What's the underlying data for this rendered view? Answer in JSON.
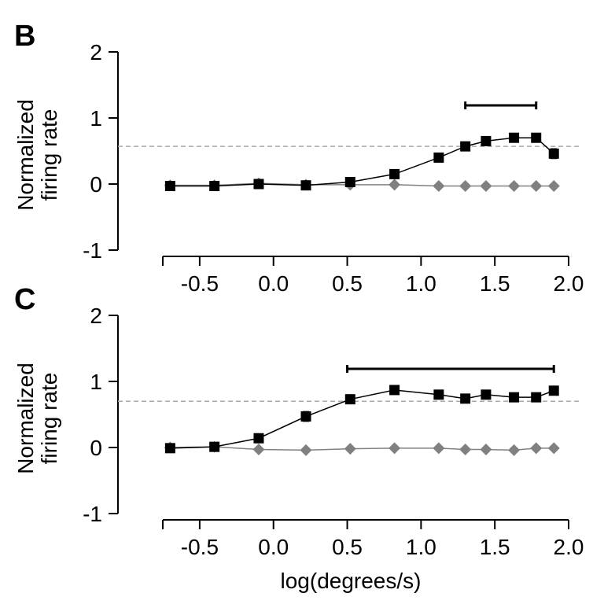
{
  "figure": {
    "xlabel": "log(degrees/s)"
  },
  "chart_data": [
    {
      "type": "line",
      "panel_label": "B",
      "ylabel_lines": [
        "Normalized",
        "firing rate"
      ],
      "xlim": [
        -0.75,
        2.0
      ],
      "ylim": [
        -1,
        2
      ],
      "xticks": [
        -0.5,
        0.0,
        0.5,
        1.0,
        1.5,
        2.0
      ],
      "xtick_labels": [
        "-0.5",
        "0.0",
        "0.5",
        "1.0",
        "1.5",
        "2.0"
      ],
      "yticks": [
        -1,
        0,
        1,
        2
      ],
      "ytick_labels": [
        "-1",
        "0",
        "1",
        "2"
      ],
      "grid": false,
      "reference_line_y": 0.57,
      "significance_bar": [
        1.3,
        1.78
      ],
      "x": [
        -0.7,
        -0.4,
        -0.1,
        0.22,
        0.52,
        0.82,
        1.12,
        1.3,
        1.44,
        1.63,
        1.78,
        1.9
      ],
      "series": [
        {
          "marker": "square",
          "color": "#000000",
          "values": [
            -0.03,
            -0.03,
            0.0,
            -0.02,
            0.03,
            0.15,
            0.4,
            0.57,
            0.65,
            0.7,
            0.7,
            0.46
          ],
          "errors": [
            0.02,
            0.02,
            0.02,
            0.02,
            0.03,
            0.06,
            0.04,
            0.06,
            0.04,
            0.05,
            0.06,
            0.07
          ]
        },
        {
          "marker": "diamond",
          "color": "#808080",
          "values": [
            -0.02,
            -0.02,
            0.01,
            -0.01,
            -0.01,
            -0.01,
            -0.03,
            -0.03,
            -0.03,
            -0.03,
            -0.03,
            -0.03
          ]
        }
      ]
    },
    {
      "type": "line",
      "panel_label": "C",
      "ylabel_lines": [
        "Normalized",
        "firing rate"
      ],
      "xlim": [
        -0.75,
        2.0
      ],
      "ylim": [
        -1,
        2
      ],
      "xticks": [
        -0.5,
        0.0,
        0.5,
        1.0,
        1.5,
        2.0
      ],
      "xtick_labels": [
        "-0.5",
        "0.0",
        "0.5",
        "1.0",
        "1.5",
        "2.0"
      ],
      "yticks": [
        -1,
        0,
        1,
        2
      ],
      "ytick_labels": [
        "-1",
        "0",
        "1",
        "2"
      ],
      "grid": false,
      "reference_line_y": 0.7,
      "significance_bar": [
        0.5,
        1.9
      ],
      "x": [
        -0.7,
        -0.4,
        -0.1,
        0.22,
        0.52,
        0.82,
        1.12,
        1.3,
        1.44,
        1.63,
        1.78,
        1.9
      ],
      "series": [
        {
          "marker": "square",
          "color": "#000000",
          "values": [
            -0.01,
            0.01,
            0.14,
            0.47,
            0.73,
            0.87,
            0.8,
            0.74,
            0.8,
            0.76,
            0.76,
            0.86
          ],
          "errors": [
            0.02,
            0.02,
            0.03,
            0.07,
            0.04,
            0.04,
            0.05,
            0.06,
            0.04,
            0.06,
            0.06,
            0.05
          ]
        },
        {
          "marker": "diamond",
          "color": "#808080",
          "values": [
            0.0,
            0.01,
            -0.03,
            -0.04,
            -0.02,
            -0.01,
            -0.01,
            -0.03,
            -0.03,
            -0.04,
            -0.01,
            -0.01
          ]
        }
      ]
    }
  ]
}
